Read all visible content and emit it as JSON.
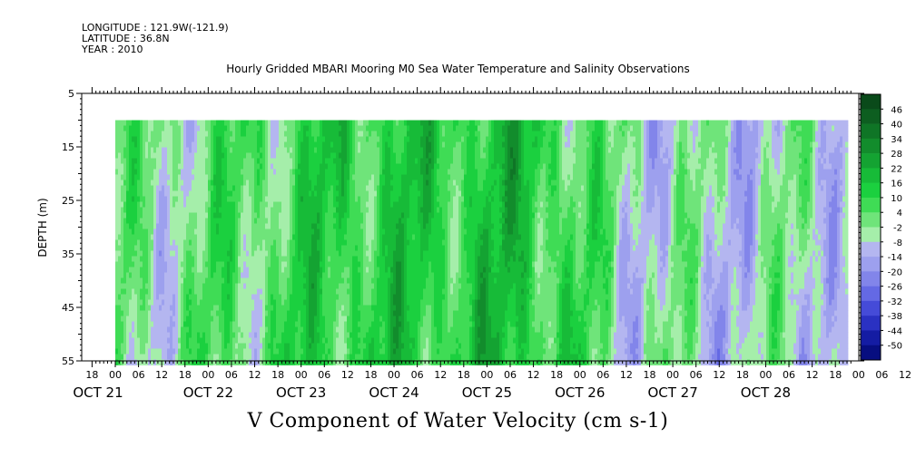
{
  "header": {
    "longitude": "LONGITUDE : 121.9W(-121.9)",
    "latitude": "LATITUDE : 36.8N",
    "year": "YEAR : 2010"
  },
  "chart_data": {
    "type": "heatmap",
    "title": "Hourly Gridded MBARI Mooring M0 Sea Water Temperature and Salinity Observations",
    "xlabel": "V Component of Water Velocity (cm s-1)",
    "ylabel": "DEPTH (m)",
    "ylim": [
      55,
      5
    ],
    "yticks": [
      5,
      15,
      25,
      35,
      45,
      55
    ],
    "data_depth_range": [
      10,
      55
    ],
    "x_hour_ticks": [
      "18",
      "00",
      "06",
      "12",
      "18",
      "00",
      "06",
      "12",
      "18",
      "00",
      "06",
      "12",
      "18",
      "00",
      "06",
      "12",
      "18",
      "00",
      "06",
      "12",
      "18",
      "00",
      "06",
      "12",
      "18",
      "00",
      "06",
      "12",
      "18",
      "00",
      "06",
      "12",
      "18",
      "00",
      "06",
      "12"
    ],
    "x_day_labels": [
      "OCT 21",
      "OCT 22",
      "OCT 23",
      "OCT 24",
      "OCT 25",
      "OCT 26",
      "OCT 27",
      "OCT 28"
    ],
    "colorbar_levels": [
      48,
      46,
      40,
      34,
      28,
      22,
      16,
      10,
      4,
      -2,
      -8,
      -14,
      -20,
      -26,
      -32,
      -38,
      -44,
      -50
    ],
    "colorbar_labels": [
      "46",
      "40",
      "34",
      "28",
      "22",
      "16",
      "10",
      "4",
      "-2",
      "-8",
      "-14",
      "-20",
      "-26",
      "-32",
      "-38",
      "-44",
      "-50"
    ],
    "colorbar_colors": [
      "#0a4a1a",
      "#0d5e20",
      "#0f7526",
      "#128c2c",
      "#14a332",
      "#17bb38",
      "#1bd03f",
      "#3fdc55",
      "#6fe47a",
      "#a5eeaa",
      "#b4b6f0",
      "#9da0ee",
      "#8285ea",
      "#6469e4",
      "#454bd8",
      "#2a31c2",
      "#141ca3",
      "#070e80"
    ],
    "day_mean_v": [
      {
        "day": "OCT 21 12:00",
        "v": -2
      },
      {
        "day": "OCT 22 12:00",
        "v": 4
      },
      {
        "day": "OCT 23 12:00",
        "v": 12
      },
      {
        "day": "OCT 24 12:00",
        "v": 12
      },
      {
        "day": "OCT 25 12:00",
        "v": 16
      },
      {
        "day": "OCT 26 12:00",
        "v": -4
      },
      {
        "day": "OCT 27 12:00",
        "v": -8
      },
      {
        "day": "OCT 28 12:00",
        "v": -6
      }
    ]
  }
}
